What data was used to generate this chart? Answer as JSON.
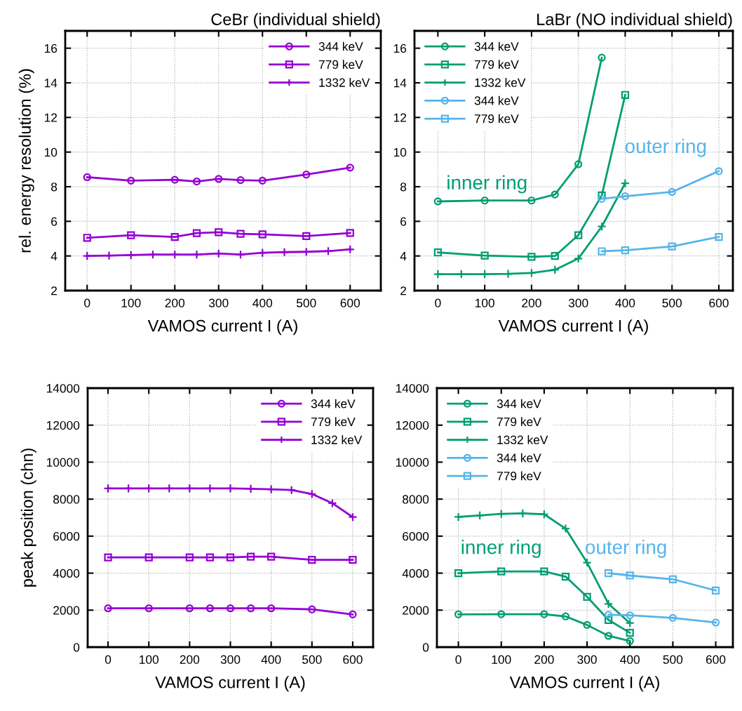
{
  "chart_data": [
    {
      "type": "line",
      "title": "CeBr (individual shield)",
      "xlabel": "VAMOS current I (A)",
      "ylabel": "rel. energy resolution (%)",
      "xlim": [
        -50,
        670
      ],
      "ylim": [
        2,
        17
      ],
      "xticks": [
        0,
        100,
        200,
        300,
        400,
        500,
        600
      ],
      "yticks": [
        2,
        4,
        6,
        8,
        10,
        12,
        14,
        16
      ],
      "grid": true,
      "legend": "top right",
      "series": [
        {
          "name": "344 keV",
          "color": "#9400d3",
          "marker": "circle",
          "x": [
            0,
            100,
            200,
            250,
            300,
            350,
            400,
            500,
            600
          ],
          "values": [
            8.55,
            8.35,
            8.4,
            8.3,
            8.45,
            8.38,
            8.35,
            8.7,
            9.1
          ]
        },
        {
          "name": "779 keV",
          "color": "#9400d3",
          "marker": "square",
          "x": [
            0,
            100,
            200,
            250,
            300,
            350,
            400,
            500,
            600
          ],
          "values": [
            5.05,
            5.2,
            5.1,
            5.32,
            5.37,
            5.28,
            5.25,
            5.15,
            5.33
          ]
        },
        {
          "name": "1332 keV",
          "color": "#9400d3",
          "marker": "cross",
          "x": [
            0,
            50,
            100,
            150,
            200,
            250,
            300,
            350,
            400,
            450,
            500,
            550,
            600
          ],
          "values": [
            4.0,
            4.02,
            4.05,
            4.08,
            4.08,
            4.08,
            4.14,
            4.08,
            4.18,
            4.22,
            4.24,
            4.28,
            4.38
          ]
        }
      ]
    },
    {
      "type": "line",
      "title": "LaBr (NO individual shield)",
      "xlabel": "VAMOS current I (A)",
      "xlim": [
        -50,
        630
      ],
      "ylim": [
        2,
        17
      ],
      "xticks": [
        0,
        100,
        200,
        300,
        400,
        500,
        600
      ],
      "yticks": [
        2,
        4,
        6,
        8,
        10,
        12,
        14,
        16
      ],
      "grid": true,
      "legend": "top left",
      "annotations": [
        "inner ring",
        "outer ring"
      ],
      "series": [
        {
          "name": "344 keV",
          "color": "#009e73",
          "marker": "circle",
          "x": [
            0,
            100,
            200,
            250,
            300,
            350
          ],
          "values": [
            7.15,
            7.2,
            7.2,
            7.55,
            9.3,
            15.45
          ]
        },
        {
          "name": "779 keV",
          "color": "#009e73",
          "marker": "square",
          "x": [
            0,
            100,
            200,
            250,
            300,
            350,
            400
          ],
          "values": [
            4.2,
            4.02,
            3.95,
            4.0,
            5.2,
            7.5,
            13.3
          ]
        },
        {
          "name": "1332 keV",
          "color": "#009e73",
          "marker": "cross",
          "x": [
            0,
            50,
            100,
            150,
            200,
            250,
            300,
            350,
            400
          ],
          "values": [
            2.95,
            2.95,
            2.95,
            2.97,
            3.02,
            3.2,
            3.85,
            5.7,
            8.2
          ]
        },
        {
          "name": "344 keV",
          "color": "#56b4e9",
          "marker": "circle",
          "x": [
            350,
            400,
            500,
            600
          ],
          "values": [
            7.3,
            7.45,
            7.7,
            8.9
          ]
        },
        {
          "name": "779 keV",
          "color": "#56b4e9",
          "marker": "square",
          "x": [
            350,
            400,
            500,
            600
          ],
          "values": [
            4.27,
            4.33,
            4.55,
            5.1
          ]
        }
      ]
    },
    {
      "type": "line",
      "xlabel": "VAMOS current I (A)",
      "ylabel": "peak position (chn)",
      "xlim": [
        -50,
        650
      ],
      "ylim": [
        0,
        14000
      ],
      "xticks": [
        0,
        100,
        200,
        300,
        400,
        500,
        600
      ],
      "yticks": [
        0,
        2000,
        4000,
        6000,
        8000,
        10000,
        12000,
        14000
      ],
      "grid": true,
      "legend": "top right",
      "series": [
        {
          "name": "344 keV",
          "color": "#9400d3",
          "marker": "circle",
          "x": [
            0,
            100,
            200,
            250,
            300,
            350,
            400,
            500,
            600
          ],
          "values": [
            2100,
            2100,
            2100,
            2100,
            2100,
            2100,
            2100,
            2040,
            1770
          ]
        },
        {
          "name": "779 keV",
          "color": "#9400d3",
          "marker": "square",
          "x": [
            0,
            100,
            200,
            250,
            300,
            350,
            400,
            500,
            600
          ],
          "values": [
            4850,
            4850,
            4850,
            4850,
            4850,
            4890,
            4890,
            4720,
            4720
          ]
        },
        {
          "name": "1332 keV",
          "color": "#9400d3",
          "marker": "cross",
          "x": [
            0,
            50,
            100,
            150,
            200,
            250,
            300,
            350,
            400,
            450,
            500,
            550,
            600
          ],
          "values": [
            8580,
            8580,
            8580,
            8580,
            8580,
            8580,
            8580,
            8560,
            8530,
            8490,
            8280,
            7780,
            7030
          ]
        }
      ]
    },
    {
      "type": "line",
      "xlabel": "VAMOS current I (A)",
      "xlim": [
        -50,
        640
      ],
      "ylim": [
        0,
        14000
      ],
      "xticks": [
        0,
        100,
        200,
        300,
        400,
        500,
        600
      ],
      "yticks": [
        0,
        2000,
        4000,
        6000,
        8000,
        10000,
        12000,
        14000
      ],
      "grid": true,
      "legend": "top left",
      "annotations": [
        "inner ring",
        "outer ring"
      ],
      "series": [
        {
          "name": "344 keV",
          "color": "#009e73",
          "marker": "circle",
          "x": [
            0,
            100,
            200,
            250,
            300,
            350,
            400
          ],
          "values": [
            1770,
            1780,
            1780,
            1660,
            1200,
            610,
            330
          ]
        },
        {
          "name": "779 keV",
          "color": "#009e73",
          "marker": "square",
          "x": [
            0,
            100,
            200,
            250,
            300,
            350,
            400
          ],
          "values": [
            4000,
            4090,
            4090,
            3810,
            2720,
            1470,
            770
          ]
        },
        {
          "name": "1332 keV",
          "color": "#009e73",
          "marker": "cross",
          "x": [
            0,
            50,
            100,
            150,
            200,
            250,
            300,
            350,
            400
          ],
          "values": [
            7040,
            7120,
            7200,
            7230,
            7180,
            6410,
            4570,
            2340,
            1300
          ]
        },
        {
          "name": "344 keV",
          "color": "#56b4e9",
          "marker": "circle",
          "x": [
            350,
            400,
            500,
            600
          ],
          "values": [
            1750,
            1720,
            1580,
            1330
          ]
        },
        {
          "name": "779 keV",
          "color": "#56b4e9",
          "marker": "square",
          "x": [
            350,
            400,
            500,
            600
          ],
          "values": [
            4000,
            3870,
            3670,
            3060
          ]
        }
      ]
    }
  ]
}
